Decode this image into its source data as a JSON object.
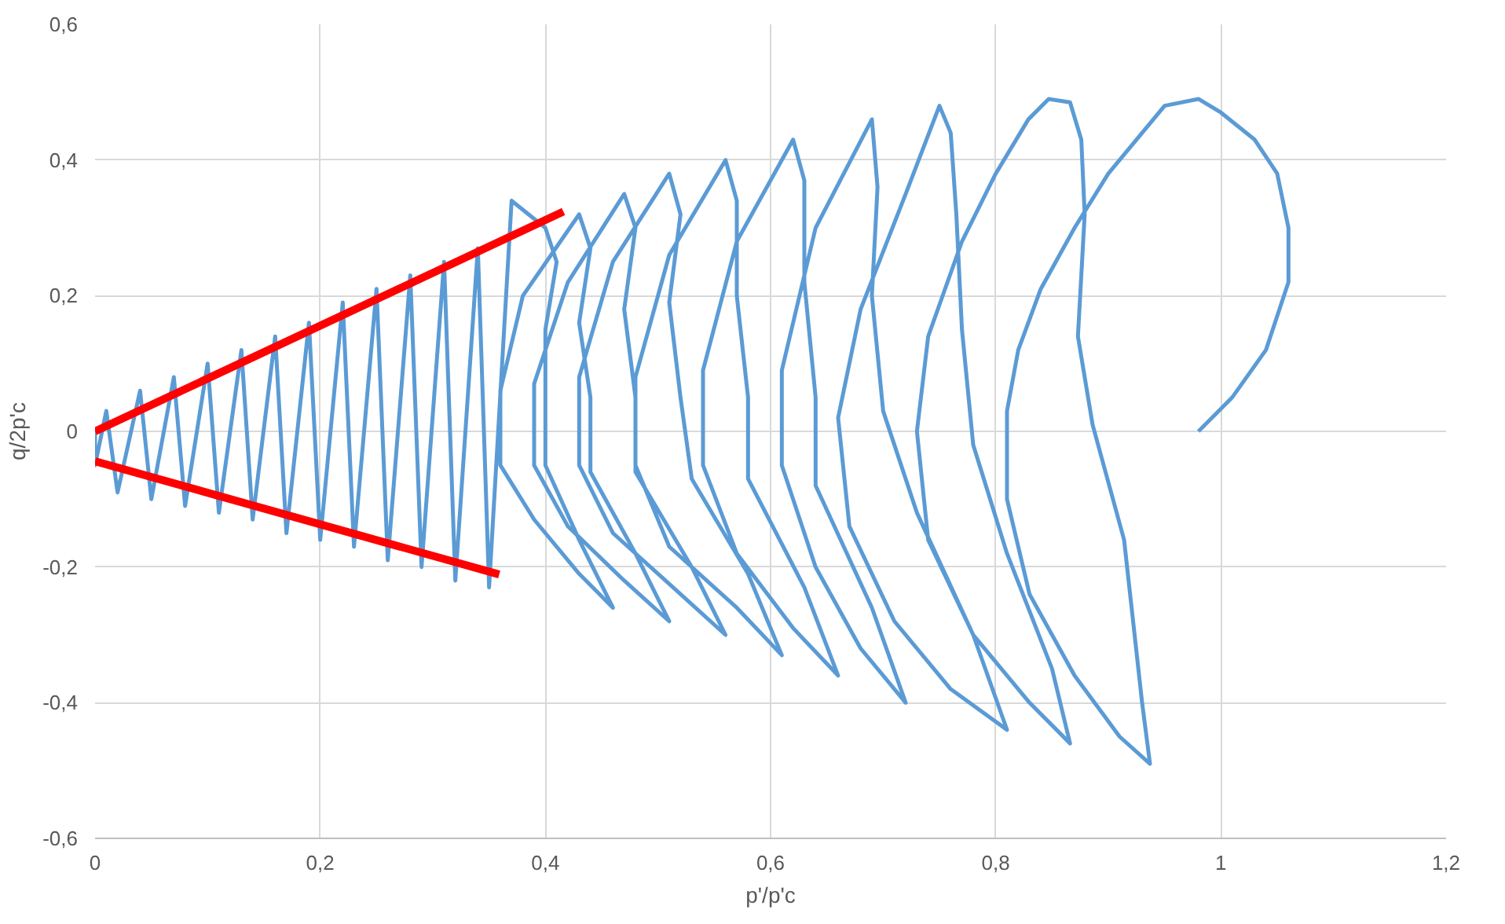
{
  "chart_data": {
    "type": "line",
    "xlabel": "p'/p'c",
    "ylabel": "q/2p'c",
    "xlim": [
      0,
      1.2
    ],
    "ylim": [
      -0.6,
      0.6
    ],
    "xticks": [
      0,
      {
        "value": 0.2,
        "label": "0,2"
      },
      {
        "value": 0.4,
        "label": "0,4"
      },
      {
        "value": 0.6,
        "label": "0,6"
      },
      {
        "value": 0.8,
        "label": "0,8"
      },
      1,
      {
        "value": 1.2,
        "label": "1,2"
      }
    ],
    "yticks": [
      {
        "value": -0.6,
        "label": "-0,6"
      },
      {
        "value": -0.4,
        "label": "-0,4"
      },
      {
        "value": -0.2,
        "label": "-0,2"
      },
      0,
      {
        "value": 0.2,
        "label": "0,2"
      },
      {
        "value": 0.4,
        "label": "0,4"
      },
      {
        "value": 0.6,
        "label": "0,6"
      }
    ],
    "grid": true,
    "marker": "none",
    "line_style": "solid",
    "series": [
      {
        "color": "#5b9bd5",
        "x": [
          0.98,
          1.01,
          1.04,
          1.06,
          1.06,
          1.05,
          1.03,
          1.0,
          0.98,
          0.95,
          0.93,
          0.9,
          0.87,
          0.84,
          0.82,
          0.81,
          0.81,
          0.83,
          0.87,
          0.91,
          0.937,
          0.93,
          0.914,
          0.886,
          0.873,
          0.879,
          0.876,
          0.866,
          0.847,
          0.829,
          0.8,
          0.77,
          0.74,
          0.73,
          0.74,
          0.78,
          0.83,
          0.866,
          0.85,
          0.81,
          0.78,
          0.77,
          0.765,
          0.76,
          0.75,
          0.72,
          0.68,
          0.66,
          0.67,
          0.71,
          0.76,
          0.81,
          0.78,
          0.73,
          0.7,
          0.69,
          0.695,
          0.69,
          0.64,
          0.61,
          0.61,
          0.64,
          0.68,
          0.72,
          0.69,
          0.64,
          0.64,
          0.63,
          0.63,
          0.62,
          0.57,
          0.54,
          0.54,
          0.57,
          0.62,
          0.66,
          0.63,
          0.58,
          0.58,
          0.57,
          0.57,
          0.56,
          0.51,
          0.48,
          0.48,
          0.51,
          0.57,
          0.61,
          0.58,
          0.53,
          0.52,
          0.51,
          0.52,
          0.51,
          0.46,
          0.43,
          0.43,
          0.46,
          0.52,
          0.56,
          0.53,
          0.48,
          0.48,
          0.47,
          0.48,
          0.47,
          0.42,
          0.39,
          0.39,
          0.42,
          0.47,
          0.51,
          0.48,
          0.44,
          0.44,
          0.43,
          0.44,
          0.43,
          0.38,
          0.36,
          0.36,
          0.39,
          0.43,
          0.46,
          0.43,
          0.4,
          0.4,
          0.4,
          0.41,
          0.4,
          0.37,
          0.35,
          0.34,
          0.32,
          0.31,
          0.29,
          0.28,
          0.26,
          0.25,
          0.23,
          0.22,
          0.2,
          0.19,
          0.17,
          0.16,
          0.14,
          0.13,
          0.11,
          0.1,
          0.08,
          0.07,
          0.05,
          0.04,
          0.02,
          0.01,
          0.0,
          0.0
        ],
        "values": [
          0.0,
          0.05,
          0.12,
          0.22,
          0.3,
          0.38,
          0.43,
          0.47,
          0.49,
          0.48,
          0.44,
          0.38,
          0.3,
          0.21,
          0.12,
          0.03,
          -0.1,
          -0.24,
          -0.36,
          -0.45,
          -0.49,
          -0.4,
          -0.16,
          0.01,
          0.14,
          0.32,
          0.43,
          0.485,
          0.49,
          0.46,
          0.38,
          0.28,
          0.14,
          0.0,
          -0.16,
          -0.3,
          -0.4,
          -0.46,
          -0.35,
          -0.18,
          -0.02,
          0.15,
          0.32,
          0.44,
          0.48,
          0.35,
          0.18,
          0.02,
          -0.14,
          -0.28,
          -0.38,
          -0.44,
          -0.3,
          -0.12,
          0.03,
          0.2,
          0.36,
          0.46,
          0.3,
          0.09,
          -0.05,
          -0.2,
          -0.32,
          -0.4,
          -0.26,
          -0.08,
          0.05,
          0.22,
          0.37,
          0.43,
          0.28,
          0.09,
          -0.05,
          -0.18,
          -0.29,
          -0.36,
          -0.23,
          -0.07,
          0.05,
          0.2,
          0.34,
          0.4,
          0.26,
          0.08,
          -0.05,
          -0.17,
          -0.26,
          -0.33,
          -0.21,
          -0.07,
          0.05,
          0.19,
          0.32,
          0.38,
          0.25,
          0.08,
          -0.05,
          -0.15,
          -0.24,
          -0.3,
          -0.2,
          -0.06,
          0.05,
          0.18,
          0.3,
          0.35,
          0.22,
          0.07,
          -0.05,
          -0.14,
          -0.22,
          -0.28,
          -0.18,
          -0.06,
          0.05,
          0.16,
          0.27,
          0.32,
          0.2,
          0.06,
          -0.05,
          -0.13,
          -0.21,
          -0.26,
          -0.16,
          -0.05,
          0.05,
          0.15,
          0.25,
          0.3,
          0.34,
          -0.23,
          0.27,
          -0.22,
          0.25,
          -0.2,
          0.23,
          -0.19,
          0.21,
          -0.17,
          0.19,
          -0.16,
          0.16,
          -0.15,
          0.14,
          -0.13,
          0.12,
          -0.12,
          0.1,
          -0.11,
          0.08,
          -0.1,
          0.06,
          -0.09,
          0.03,
          -0.05,
          0.0
        ]
      },
      {
        "color": "#ff0000",
        "x": [
          0.0,
          0.416
        ],
        "values": [
          0.0,
          0.324
        ]
      },
      {
        "color": "#ff0000",
        "x": [
          0.0,
          0.359
        ],
        "values": [
          -0.044,
          -0.211
        ]
      }
    ]
  }
}
